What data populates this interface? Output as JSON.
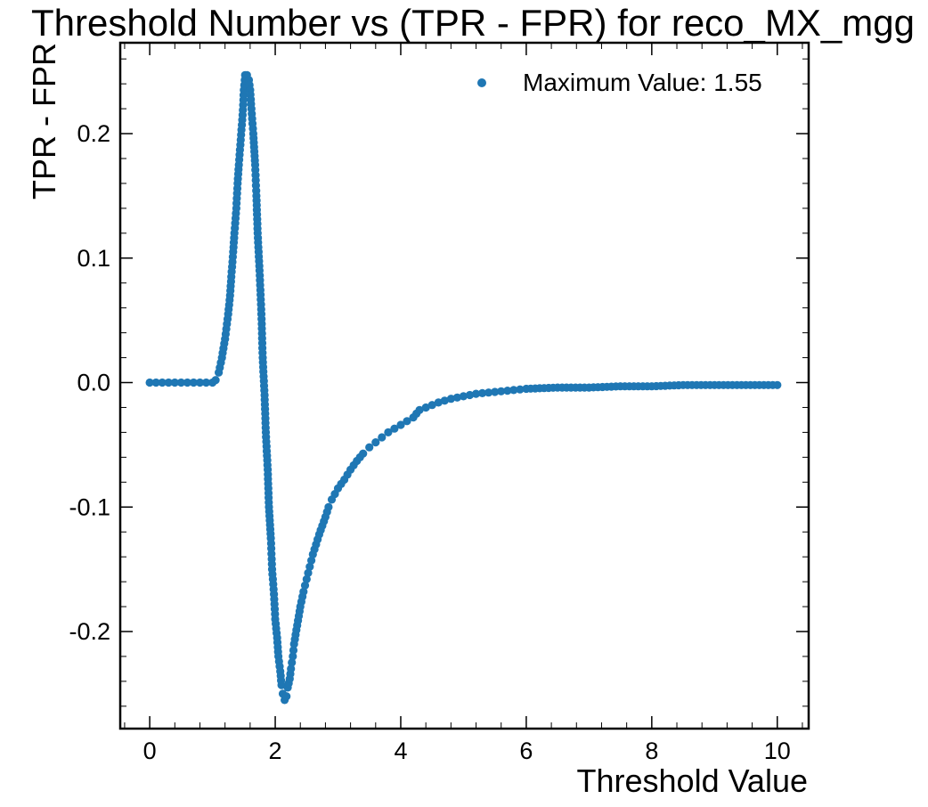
{
  "chart_data": {
    "type": "scatter",
    "title": "Threshold Number vs (TPR - FPR) for reco_MX_mgg",
    "xlabel": "Threshold Value",
    "ylabel": "TPR - FPR",
    "xlim": [
      -0.47,
      10.5
    ],
    "ylim": [
      -0.278,
      0.273
    ],
    "xticks": [
      0,
      2,
      4,
      6,
      8,
      10
    ],
    "xtick_labels": [
      "0",
      "2",
      "4",
      "6",
      "8",
      "10"
    ],
    "yticks": [
      -0.2,
      -0.1,
      0.0,
      0.1,
      0.2
    ],
    "ytick_labels": [
      "-0.2",
      "-0.1",
      "0.0",
      "0.1",
      "0.2"
    ],
    "grid": false,
    "legend_position": "top-right",
    "color": "#1f77b4",
    "series": [
      {
        "name": "Maximum Value: 1.55",
        "x": [
          0.0,
          0.1,
          0.2,
          0.3,
          0.4,
          0.5,
          0.6,
          0.7,
          0.8,
          0.9,
          1.0,
          1.05,
          1.1,
          1.15,
          1.2,
          1.25,
          1.28,
          1.3,
          1.33,
          1.35,
          1.38,
          1.4,
          1.42,
          1.45,
          1.48,
          1.5,
          1.52,
          1.55,
          1.58,
          1.6,
          1.62,
          1.65,
          1.68,
          1.7,
          1.72,
          1.75,
          1.78,
          1.8,
          1.83,
          1.85,
          1.88,
          1.9,
          1.93,
          1.95,
          1.98,
          2.0,
          2.03,
          2.05,
          2.08,
          2.1,
          2.12,
          2.15,
          2.18,
          2.2,
          2.23,
          2.25,
          2.28,
          2.3,
          2.35,
          2.4,
          2.45,
          2.5,
          2.55,
          2.6,
          2.65,
          2.7,
          2.75,
          2.8,
          2.85,
          2.9,
          3.0,
          3.1,
          3.2,
          3.3,
          3.4,
          3.5,
          3.6,
          3.7,
          3.8,
          3.9,
          4.0,
          4.1,
          4.2,
          4.25,
          4.3,
          4.4,
          4.5,
          4.6,
          4.8,
          5.0,
          5.2,
          5.4,
          5.6,
          5.8,
          6.0,
          6.5,
          7.0,
          7.5,
          8.0,
          8.5,
          9.0,
          9.5,
          10.0
        ],
        "y": [
          0.0,
          0.0,
          0.0,
          0.0,
          0.0,
          0.0,
          0.0,
          0.0,
          0.0,
          0.0,
          0.0,
          0.002,
          0.008,
          0.02,
          0.035,
          0.055,
          0.07,
          0.085,
          0.105,
          0.12,
          0.14,
          0.16,
          0.175,
          0.195,
          0.215,
          0.235,
          0.247,
          0.247,
          0.243,
          0.235,
          0.22,
          0.2,
          0.175,
          0.15,
          0.12,
          0.09,
          0.055,
          0.02,
          -0.01,
          -0.04,
          -0.07,
          -0.1,
          -0.125,
          -0.15,
          -0.17,
          -0.19,
          -0.205,
          -0.22,
          -0.232,
          -0.243,
          -0.25,
          -0.255,
          -0.252,
          -0.245,
          -0.238,
          -0.23,
          -0.22,
          -0.21,
          -0.195,
          -0.18,
          -0.168,
          -0.158,
          -0.148,
          -0.138,
          -0.13,
          -0.122,
          -0.115,
          -0.108,
          -0.1,
          -0.094,
          -0.085,
          -0.078,
          -0.07,
          -0.063,
          -0.057,
          -0.052,
          -0.048,
          -0.044,
          -0.04,
          -0.037,
          -0.034,
          -0.031,
          -0.028,
          -0.025,
          -0.022,
          -0.02,
          -0.018,
          -0.016,
          -0.013,
          -0.011,
          -0.009,
          -0.008,
          -0.007,
          -0.006,
          -0.005,
          -0.004,
          -0.004,
          -0.003,
          -0.003,
          -0.002,
          -0.002,
          -0.002,
          -0.002
        ]
      }
    ]
  }
}
